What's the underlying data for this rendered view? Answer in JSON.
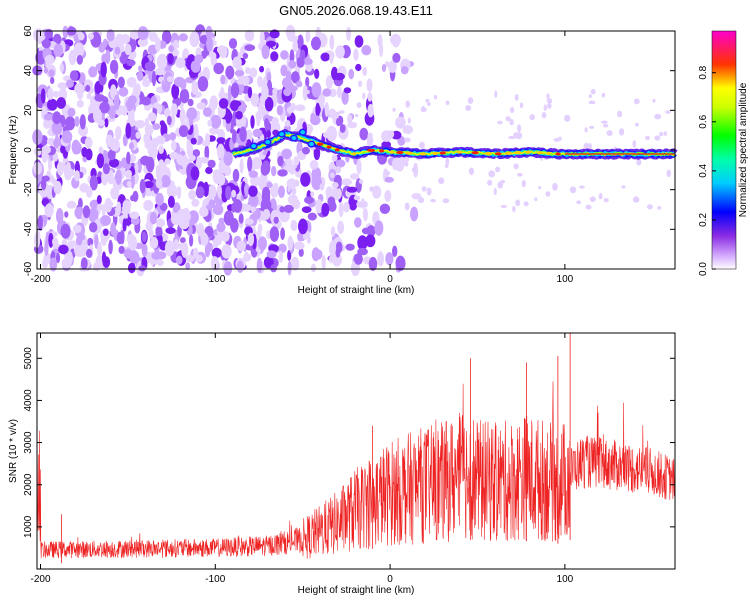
{
  "title": "GN05.2026.068.19.43.E11",
  "colors": {
    "snr_line": "#ee2222",
    "axis": "#000000",
    "background": "#ffffff"
  },
  "chart_data": [
    {
      "type": "heatmap",
      "xlabel": "Height of straight line (km)",
      "ylabel": "Frequency (Hz)",
      "xlim": [
        -202,
        163
      ],
      "ylim": [
        -60,
        60
      ],
      "xticks": [
        -200,
        -100,
        0,
        100
      ],
      "yticks": [
        60,
        40,
        20,
        0,
        -20,
        -40,
        -60
      ],
      "colorbar": {
        "label": "Normalized spectral amplitude",
        "range": [
          0.0,
          0.97
        ],
        "ticks": [
          0.0,
          0.2,
          0.4,
          0.6,
          0.8
        ],
        "tick_labels": [
          "0.0",
          "0.2",
          "0.4",
          "0.6",
          "0.8"
        ],
        "colormap": "rainbow (white-violet-blue-cyan-green-yellow-red-magenta)"
      },
      "features": {
        "noise_region_x": [
          -202,
          -40
        ],
        "signal_start_x": -90,
        "signal_track": {
          "x": [
            -90,
            -80,
            -70,
            -60,
            -50,
            -40,
            -30,
            -20,
            -10,
            0,
            20,
            40,
            60,
            80,
            95,
            100,
            130,
            163
          ],
          "y": [
            -2,
            0,
            3,
            8,
            6,
            3,
            0,
            -2,
            0,
            -1,
            -2,
            -1,
            -2,
            -1,
            -2,
            -2,
            -2,
            -2
          ]
        }
      }
    },
    {
      "type": "line",
      "xlabel": "Height of straight line (km)",
      "ylabel": "SNR (10 * v/v)",
      "xlim": [
        -202,
        163
      ],
      "ylim": [
        0,
        5600
      ],
      "xticks": [
        -200,
        -100,
        0,
        100
      ],
      "yticks": [
        1000,
        2000,
        3000,
        4000,
        5000
      ],
      "series": [
        {
          "x": [
            -200,
            -150,
            -100,
            -70,
            -50,
            -30,
            -20,
            -10,
            0,
            10,
            20,
            30,
            40,
            46,
            50,
            60,
            70,
            78,
            80,
            90,
            96,
            100,
            103,
            105,
            110,
            130,
            150,
            163
          ],
          "y": [
            450,
            480,
            500,
            550,
            700,
            1100,
            1400,
            1600,
            1800,
            1900,
            2000,
            2050,
            2200,
            2300,
            2100,
            2050,
            2100,
            2200,
            2150,
            2100,
            2000,
            2100,
            2300,
            2400,
            2550,
            2450,
            2300,
            2100
          ]
        }
      ]
    }
  ]
}
